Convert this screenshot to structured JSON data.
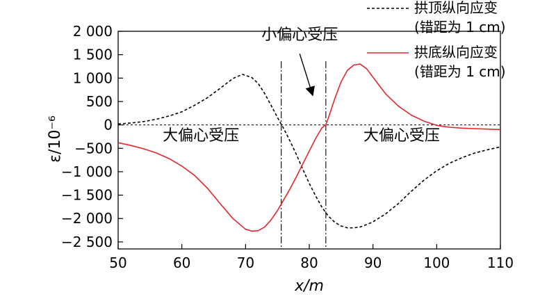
{
  "chart_data": {
    "type": "line",
    "xlabel": "x/m",
    "ylabel": "ε/10⁻⁶",
    "xlim": [
      50,
      110
    ],
    "ylim": [
      -2650,
      2000
    ],
    "xticks": [
      50,
      60,
      70,
      80,
      90,
      100,
      110
    ],
    "xtick_labels": [
      "50",
      "60",
      "70",
      "80",
      "90",
      "100",
      "110"
    ],
    "yticks": [
      2000,
      1500,
      1000,
      500,
      0,
      -500,
      -1000,
      -1500,
      -2000,
      -2500
    ],
    "ytick_labels": [
      "2 000",
      "1 500",
      "1 000",
      "500",
      "0",
      "−500",
      "−1 000",
      "−1 500",
      "−2 000",
      "−2 500"
    ],
    "grid": false,
    "legend_position": "top-right",
    "reference_lines": {
      "horizontal_y": 0,
      "vertical_x": [
        75.6,
        82.6
      ]
    },
    "series": [
      {
        "name": "拱顶纵向应变",
        "name_line2": "(错距为 1 cm)",
        "color": "#000000",
        "dash": "dashed",
        "x": [
          50,
          52,
          54,
          56,
          58,
          60,
          62,
          64,
          66,
          68,
          69.5,
          71,
          72,
          73,
          74,
          75,
          76,
          77,
          78,
          79,
          80,
          81,
          82,
          83,
          84,
          85,
          86,
          87,
          88,
          89,
          90,
          92,
          94,
          96,
          98,
          100,
          102,
          104,
          106,
          108,
          110
        ],
        "y": [
          20,
          40,
          70,
          120,
          190,
          280,
          420,
          580,
          780,
          990,
          1080,
          1010,
          880,
          670,
          420,
          160,
          -80,
          -350,
          -640,
          -950,
          -1250,
          -1520,
          -1760,
          -1950,
          -2080,
          -2160,
          -2200,
          -2200,
          -2180,
          -2130,
          -2070,
          -1900,
          -1680,
          -1420,
          -1180,
          -980,
          -820,
          -700,
          -600,
          -530,
          -470
        ]
      },
      {
        "name": "拱底纵向应变",
        "name_line2": "(错距为 1 cm)",
        "color": "#e1262d",
        "dash": "solid",
        "x": [
          50,
          52,
          54,
          56,
          58,
          60,
          62,
          64,
          66,
          68,
          70,
          71,
          72,
          73,
          74,
          75,
          76,
          77,
          78,
          79,
          80,
          81,
          82,
          82.6,
          83,
          84,
          85,
          86,
          87,
          88,
          89,
          90,
          91,
          92,
          94,
          96,
          98,
          100,
          102,
          104,
          106,
          108,
          110
        ],
        "y": [
          -380,
          -440,
          -510,
          -600,
          -720,
          -880,
          -1080,
          -1350,
          -1680,
          -2000,
          -2230,
          -2270,
          -2260,
          -2180,
          -2030,
          -1830,
          -1600,
          -1360,
          -1100,
          -830,
          -560,
          -290,
          -60,
          0,
          150,
          560,
          920,
          1170,
          1280,
          1300,
          1200,
          1020,
          840,
          660,
          400,
          210,
          80,
          -10,
          -50,
          -70,
          -80,
          -90,
          -100
        ]
      }
    ],
    "annotations": [
      {
        "text": "小偏心受压",
        "x": 78.5,
        "y": 1820
      },
      {
        "text": "大偏心受压",
        "x": 63,
        "y": -330
      },
      {
        "text": "大偏心受压",
        "x": 94.5,
        "y": -330
      }
    ],
    "arrow": {
      "from": [
        78.5,
        1520
      ],
      "to": [
        80.5,
        650
      ]
    }
  }
}
